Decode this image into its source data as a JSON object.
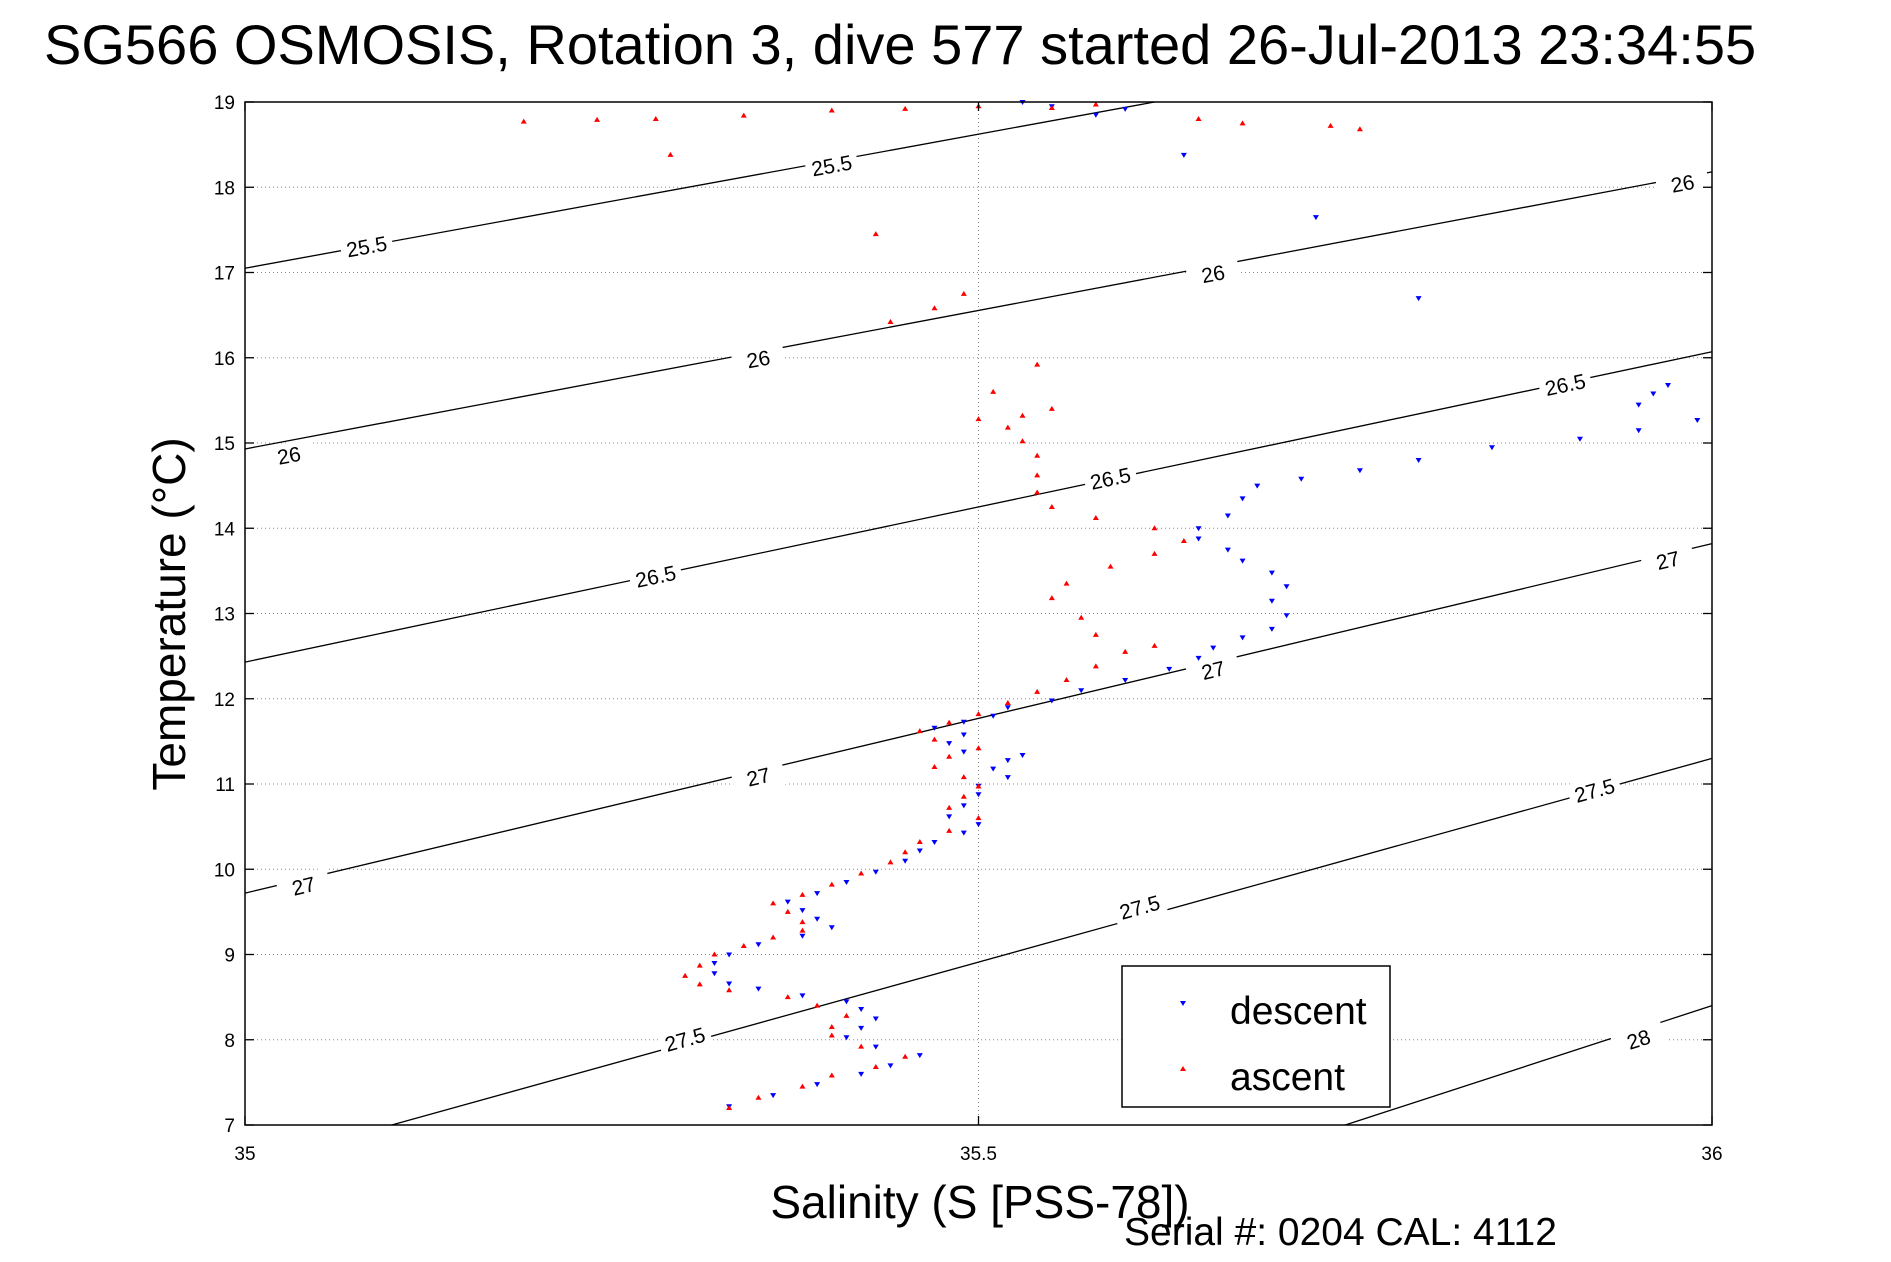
{
  "chart_data": {
    "type": "scatter",
    "title": "SG566 OSMOSIS, Rotation 3, dive 577 started 26-Jul-2013 23:34:55",
    "xlabel": "Salinity (S [PSS-78])",
    "ylabel": "Temperature (°C)",
    "xlim": [
      35,
      36
    ],
    "ylim": [
      7,
      19
    ],
    "xticks": [
      "35",
      "35.5",
      "36"
    ],
    "yticks": [
      "7",
      "8",
      "9",
      "10",
      "11",
      "12",
      "13",
      "14",
      "15",
      "16",
      "17",
      "18",
      "19"
    ],
    "grid": true,
    "legend_position": "bottom-right",
    "footer": "Serial #: 0204  CAL: 4112",
    "colors": {
      "descent": "#0000ff",
      "ascent": "#ff0000",
      "contour": "#000000",
      "grid": "#888888"
    },
    "contours": [
      {
        "label": "25.5",
        "points": [
          [
            35,
            17.05
          ],
          [
            35.62,
            19
          ]
        ],
        "label_positions": [
          [
            35.083,
            17.3
          ],
          [
            35.4,
            18.25
          ]
        ]
      },
      {
        "label": "26",
        "points": [
          [
            35,
            14.93
          ],
          [
            36,
            18.18
          ]
        ],
        "label_positions": [
          [
            35.03,
            14.85
          ],
          [
            35.35,
            15.98
          ],
          [
            35.66,
            16.98
          ],
          [
            35.98,
            18.04
          ]
        ]
      },
      {
        "label": "26.5",
        "points": [
          [
            35,
            12.43
          ],
          [
            36,
            16.07
          ]
        ],
        "label_positions": [
          [
            35.28,
            13.43
          ],
          [
            35.59,
            14.58
          ],
          [
            35.9,
            15.68
          ]
        ]
      },
      {
        "label": "27",
        "points": [
          [
            35,
            9.72
          ],
          [
            36,
            13.82
          ]
        ],
        "label_positions": [
          [
            35.04,
            9.8
          ],
          [
            35.35,
            11.08
          ],
          [
            35.66,
            12.33
          ],
          [
            35.97,
            13.62
          ]
        ]
      },
      {
        "label": "27.5",
        "points": [
          [
            35.1,
            7
          ],
          [
            36,
            11.3
          ]
        ],
        "label_positions": [
          [
            35.3,
            8.0
          ],
          [
            35.61,
            9.55
          ],
          [
            35.92,
            10.92
          ]
        ]
      },
      {
        "label": "28",
        "points": [
          [
            35.75,
            7
          ],
          [
            36,
            8.4
          ]
        ],
        "label_positions": [
          [
            35.95,
            8.0
          ]
        ]
      }
    ],
    "series": [
      {
        "name": "descent",
        "marker": "triangle-down",
        "points": [
          [
            35.33,
            7.22
          ],
          [
            35.36,
            7.35
          ],
          [
            35.39,
            7.48
          ],
          [
            35.42,
            7.6
          ],
          [
            35.44,
            7.7
          ],
          [
            35.46,
            7.82
          ],
          [
            35.43,
            7.92
          ],
          [
            35.41,
            8.03
          ],
          [
            35.42,
            8.14
          ],
          [
            35.43,
            8.25
          ],
          [
            35.42,
            8.36
          ],
          [
            35.41,
            8.45
          ],
          [
            35.38,
            8.52
          ],
          [
            35.35,
            8.6
          ],
          [
            35.33,
            8.66
          ],
          [
            35.32,
            8.78
          ],
          [
            35.32,
            8.9
          ],
          [
            35.33,
            9.0
          ],
          [
            35.35,
            9.12
          ],
          [
            35.38,
            9.22
          ],
          [
            35.4,
            9.32
          ],
          [
            35.39,
            9.42
          ],
          [
            35.38,
            9.52
          ],
          [
            35.37,
            9.62
          ],
          [
            35.39,
            9.72
          ],
          [
            35.41,
            9.85
          ],
          [
            35.43,
            9.97
          ],
          [
            35.45,
            10.1
          ],
          [
            35.46,
            10.22
          ],
          [
            35.47,
            10.32
          ],
          [
            35.49,
            10.43
          ],
          [
            35.5,
            10.53
          ],
          [
            35.48,
            10.62
          ],
          [
            35.49,
            10.75
          ],
          [
            35.5,
            10.88
          ],
          [
            35.5,
            10.98
          ],
          [
            35.52,
            11.08
          ],
          [
            35.51,
            11.18
          ],
          [
            35.52,
            11.28
          ],
          [
            35.53,
            11.34
          ],
          [
            35.49,
            11.38
          ],
          [
            35.48,
            11.48
          ],
          [
            35.49,
            11.58
          ],
          [
            35.47,
            11.66
          ],
          [
            35.49,
            11.73
          ],
          [
            35.51,
            11.8
          ],
          [
            35.52,
            11.9
          ],
          [
            35.55,
            11.98
          ],
          [
            35.57,
            12.1
          ],
          [
            35.6,
            12.22
          ],
          [
            35.63,
            12.35
          ],
          [
            35.65,
            12.48
          ],
          [
            35.66,
            12.6
          ],
          [
            35.68,
            12.72
          ],
          [
            35.7,
            12.82
          ],
          [
            35.71,
            12.98
          ],
          [
            35.7,
            13.15
          ],
          [
            35.71,
            13.32
          ],
          [
            35.7,
            13.48
          ],
          [
            35.68,
            13.62
          ],
          [
            35.67,
            13.75
          ],
          [
            35.65,
            13.88
          ],
          [
            35.65,
            14.0
          ],
          [
            35.67,
            14.15
          ],
          [
            35.68,
            14.35
          ],
          [
            35.69,
            14.5
          ],
          [
            35.72,
            14.58
          ],
          [
            35.76,
            14.68
          ],
          [
            35.8,
            14.8
          ],
          [
            35.85,
            14.95
          ],
          [
            35.91,
            15.05
          ],
          [
            35.95,
            15.15
          ],
          [
            35.99,
            15.27
          ],
          [
            35.95,
            15.45
          ],
          [
            35.96,
            15.58
          ],
          [
            35.97,
            15.68
          ],
          [
            35.8,
            16.7
          ],
          [
            35.73,
            17.65
          ],
          [
            35.64,
            18.38
          ],
          [
            35.58,
            18.85
          ],
          [
            35.55,
            18.95
          ],
          [
            35.53,
            19.0
          ],
          [
            35.6,
            18.92
          ]
        ]
      },
      {
        "name": "ascent",
        "marker": "triangle-up",
        "points": [
          [
            35.33,
            7.2
          ],
          [
            35.35,
            7.32
          ],
          [
            35.38,
            7.45
          ],
          [
            35.4,
            7.58
          ],
          [
            35.43,
            7.68
          ],
          [
            35.45,
            7.8
          ],
          [
            35.42,
            7.92
          ],
          [
            35.4,
            8.05
          ],
          [
            35.4,
            8.15
          ],
          [
            35.41,
            8.28
          ],
          [
            35.39,
            8.4
          ],
          [
            35.37,
            8.5
          ],
          [
            35.33,
            8.58
          ],
          [
            35.31,
            8.65
          ],
          [
            35.3,
            8.75
          ],
          [
            35.31,
            8.87
          ],
          [
            35.32,
            9.0
          ],
          [
            35.34,
            9.1
          ],
          [
            35.36,
            9.2
          ],
          [
            35.38,
            9.28
          ],
          [
            35.38,
            9.38
          ],
          [
            35.37,
            9.5
          ],
          [
            35.36,
            9.6
          ],
          [
            35.38,
            9.7
          ],
          [
            35.4,
            9.82
          ],
          [
            35.42,
            9.95
          ],
          [
            35.44,
            10.08
          ],
          [
            35.45,
            10.2
          ],
          [
            35.46,
            10.32
          ],
          [
            35.48,
            10.45
          ],
          [
            35.5,
            10.6
          ],
          [
            35.48,
            10.72
          ],
          [
            35.49,
            10.85
          ],
          [
            35.5,
            10.97
          ],
          [
            35.49,
            11.08
          ],
          [
            35.47,
            11.2
          ],
          [
            35.48,
            11.32
          ],
          [
            35.5,
            11.42
          ],
          [
            35.47,
            11.52
          ],
          [
            35.46,
            11.62
          ],
          [
            35.48,
            11.72
          ],
          [
            35.5,
            11.82
          ],
          [
            35.52,
            11.95
          ],
          [
            35.54,
            12.08
          ],
          [
            35.56,
            12.22
          ],
          [
            35.58,
            12.38
          ],
          [
            35.6,
            12.55
          ],
          [
            35.62,
            12.62
          ],
          [
            35.58,
            12.75
          ],
          [
            35.57,
            12.95
          ],
          [
            35.55,
            13.18
          ],
          [
            35.56,
            13.35
          ],
          [
            35.59,
            13.55
          ],
          [
            35.62,
            13.7
          ],
          [
            35.64,
            13.85
          ],
          [
            35.62,
            14.0
          ],
          [
            35.58,
            14.12
          ],
          [
            35.55,
            14.25
          ],
          [
            35.54,
            14.42
          ],
          [
            35.54,
            14.62
          ],
          [
            35.54,
            14.85
          ],
          [
            35.53,
            15.02
          ],
          [
            35.52,
            15.18
          ],
          [
            35.5,
            15.28
          ],
          [
            35.53,
            15.32
          ],
          [
            35.55,
            15.4
          ],
          [
            35.51,
            15.6
          ],
          [
            35.54,
            15.92
          ],
          [
            35.49,
            16.75
          ],
          [
            35.47,
            16.58
          ],
          [
            35.44,
            16.42
          ],
          [
            35.43,
            17.45
          ],
          [
            35.29,
            18.38
          ],
          [
            35.28,
            18.8
          ],
          [
            35.19,
            18.77
          ],
          [
            35.24,
            18.79
          ],
          [
            35.34,
            18.84
          ],
          [
            35.4,
            18.9
          ],
          [
            35.45,
            18.92
          ],
          [
            35.5,
            18.95
          ],
          [
            35.55,
            18.93
          ],
          [
            35.58,
            18.97
          ],
          [
            35.65,
            18.8
          ],
          [
            35.68,
            18.75
          ],
          [
            35.74,
            18.72
          ],
          [
            35.76,
            18.68
          ]
        ]
      }
    ]
  }
}
